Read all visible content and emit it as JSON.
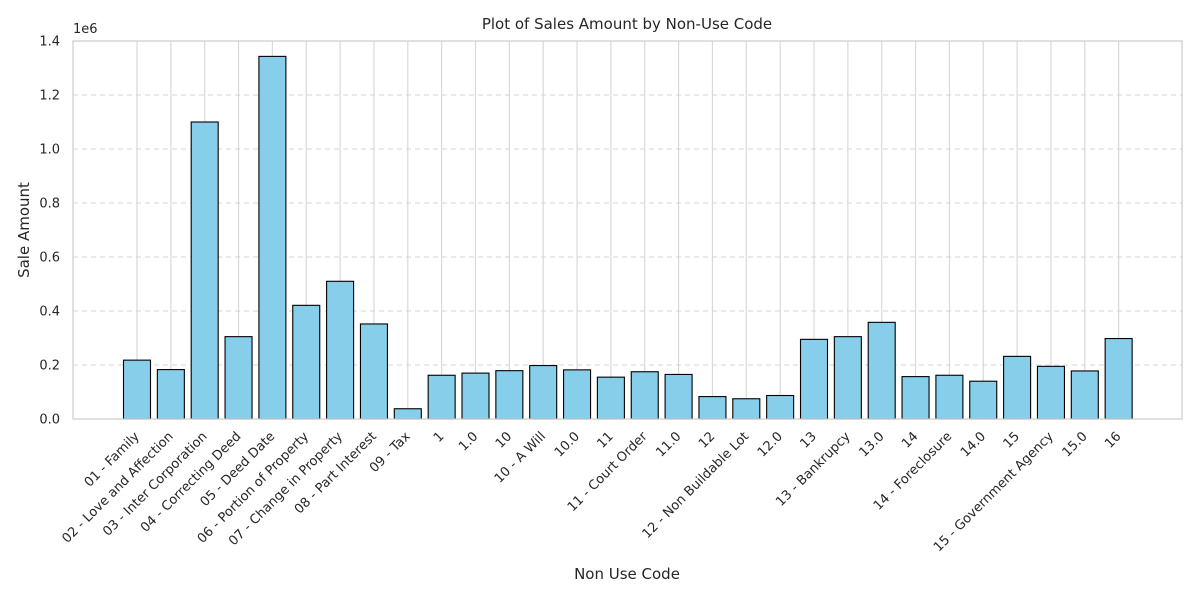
{
  "chart_data": {
    "type": "bar",
    "title": "Plot of Sales Amount by Non-Use Code",
    "xlabel": "Non Use Code",
    "ylabel": "Sale Amount",
    "y_exponent_label": "1e6",
    "ylim": [
      0,
      1400000
    ],
    "yticks": [
      0,
      200000,
      400000,
      600000,
      800000,
      1000000,
      1200000,
      1400000
    ],
    "ytick_labels": [
      "0.0",
      "0.2",
      "0.4",
      "0.6",
      "0.8",
      "1.0",
      "1.2",
      "1.4"
    ],
    "grid": true,
    "bar_color": "#87CEEB",
    "bar_edge_color": "#000000",
    "categories": [
      "01 - Family",
      "02 - Love and Affection",
      "03 - Inter Corporation",
      "04 - Correcting Deed",
      "05 - Deed Date",
      "06 - Portion of Property",
      "07 - Change in Property",
      "08 - Part Interest",
      "09 - Tax",
      "1",
      "1.0",
      "10",
      "10 - A Will",
      "10.0",
      "11",
      "11 - Court Order",
      "11.0",
      "12",
      "12 - Non Buildable Lot",
      "12.0",
      "13",
      "13 - Bankrupcy",
      "13.0",
      "14",
      "14 - Foreclosure",
      "14.0",
      "15",
      "15 - Government Agency",
      "15.0",
      "16"
    ],
    "values": [
      218000,
      183000,
      1100000,
      305000,
      1343000,
      421000,
      510000,
      352000,
      38000,
      162000,
      170000,
      179000,
      198000,
      182000,
      155000,
      175000,
      165000,
      83000,
      75000,
      87000,
      295000,
      305000,
      358000,
      157000,
      162000,
      140000,
      232000,
      195000,
      178000,
      298000
    ]
  }
}
